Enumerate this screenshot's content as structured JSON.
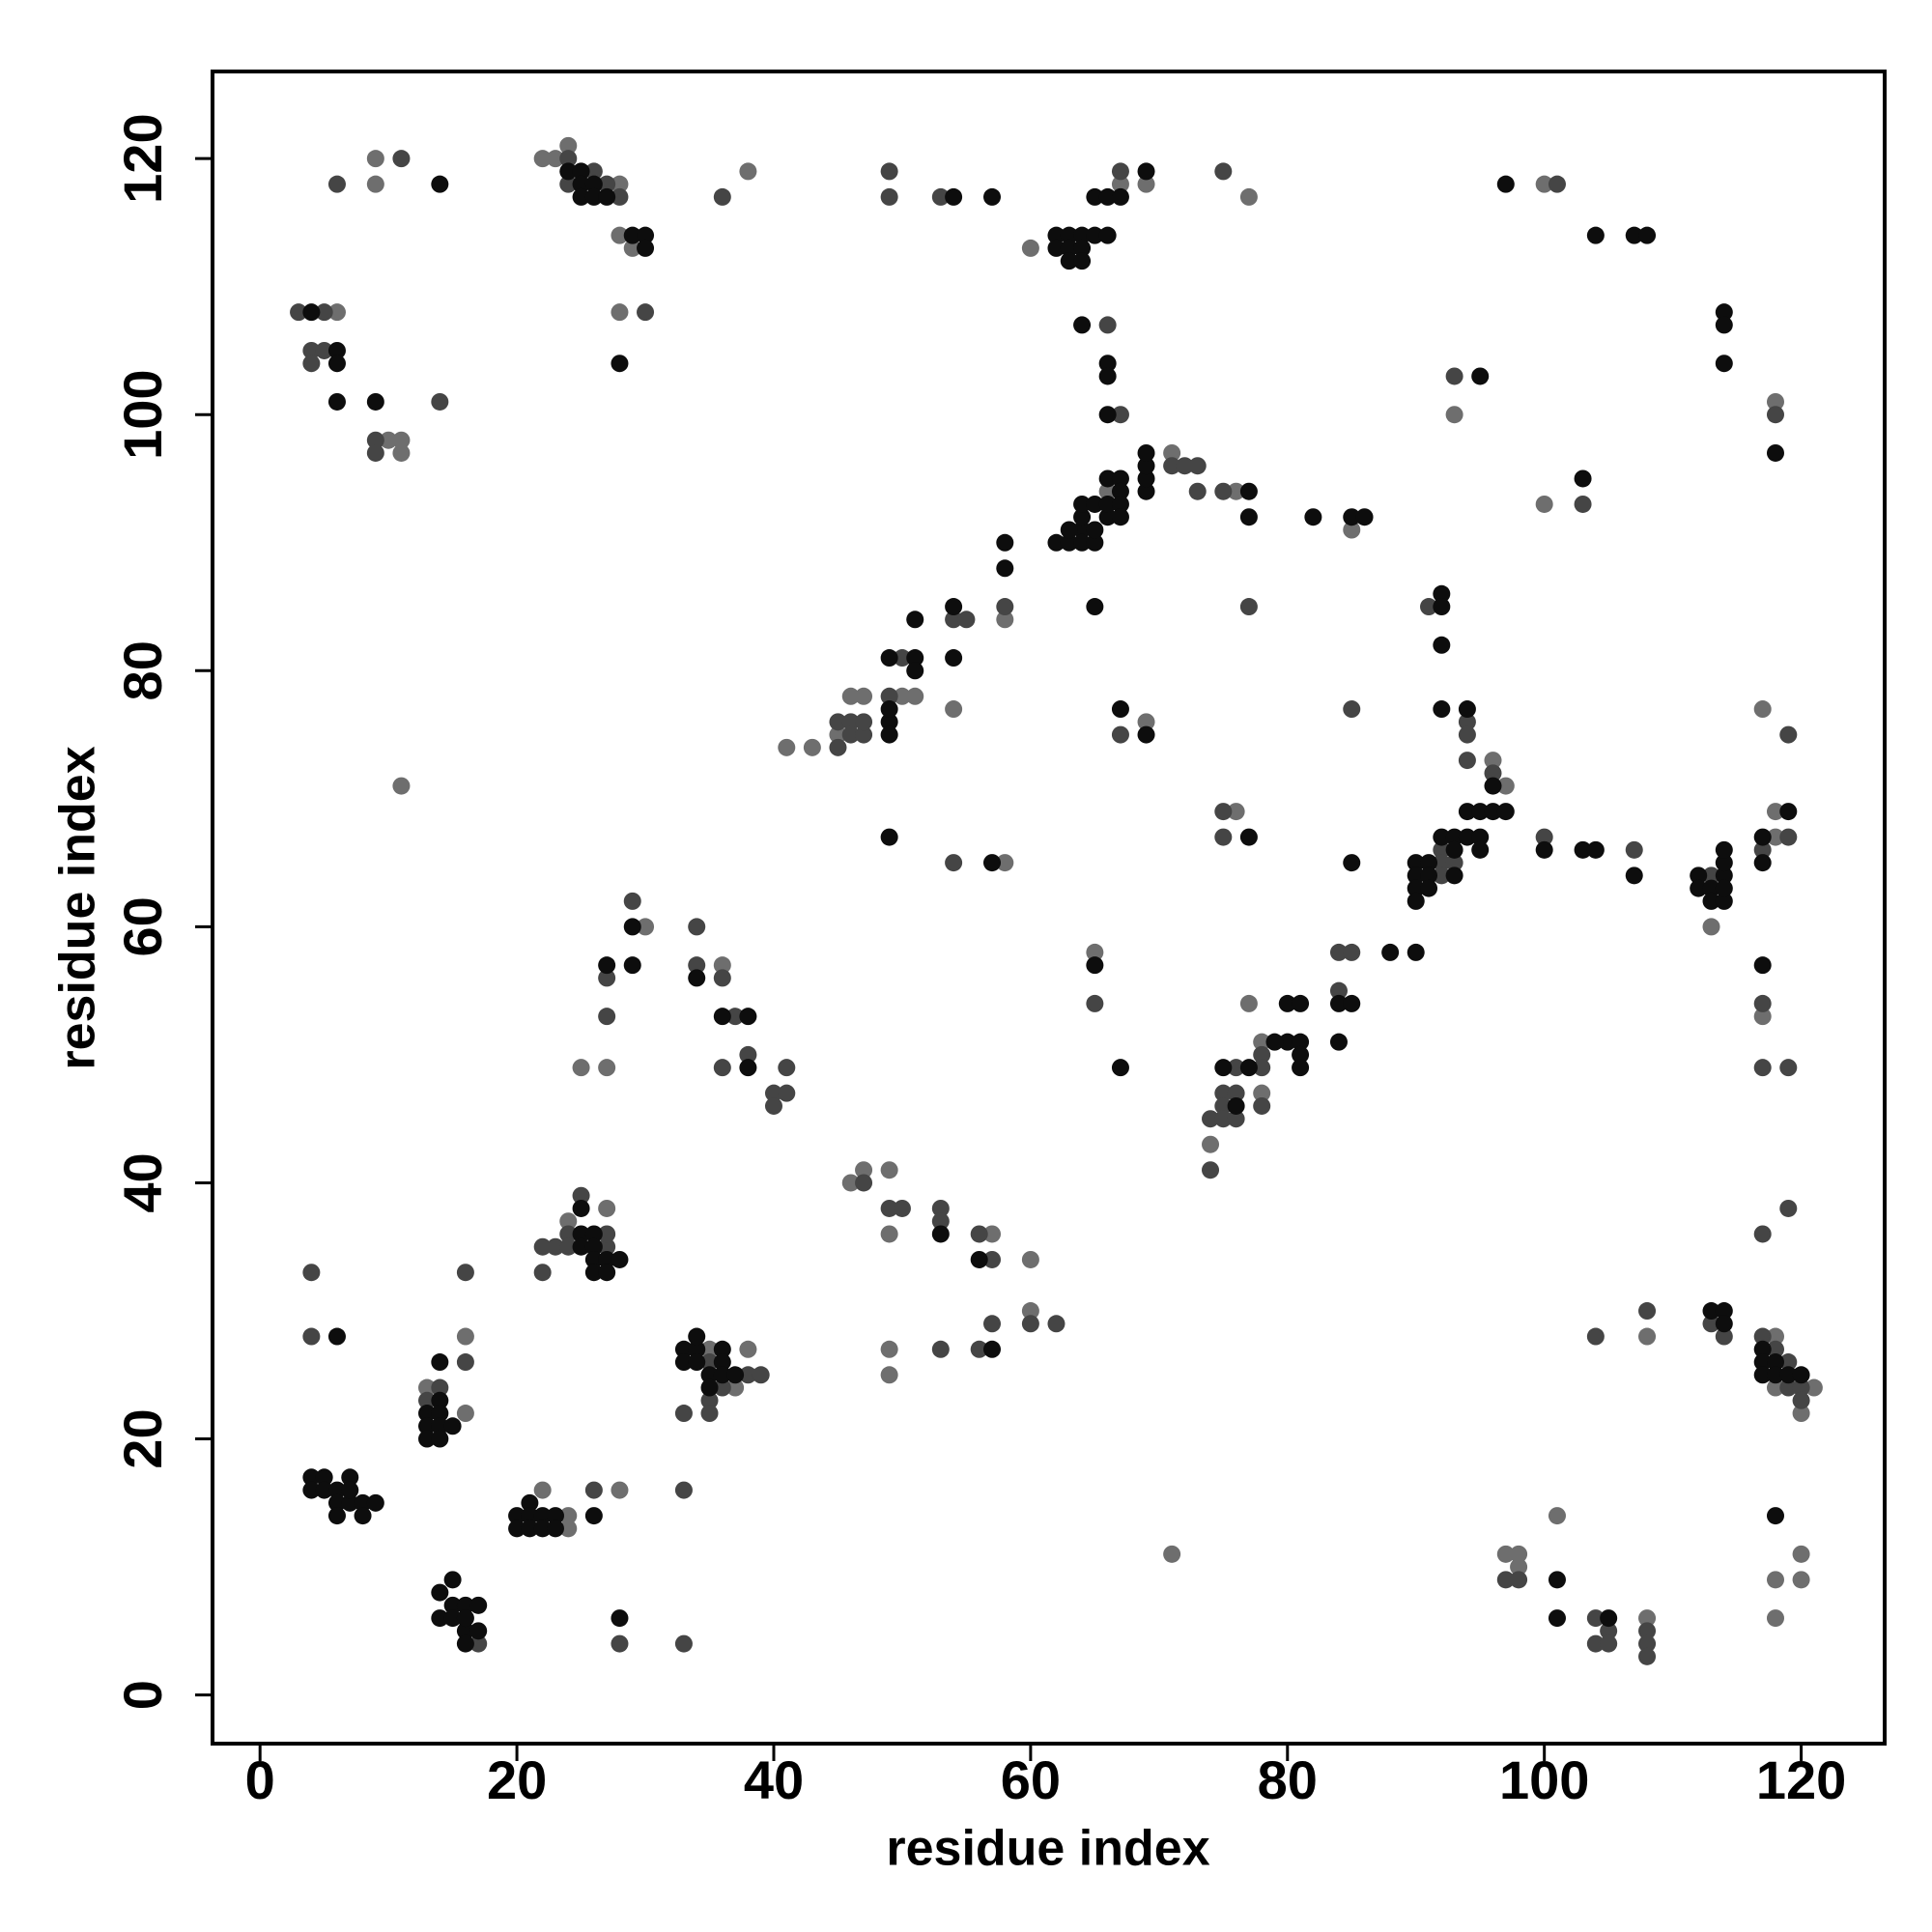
{
  "chart_data": {
    "type": "scatter",
    "xlabel": "residue index",
    "ylabel": "residue index",
    "xlim": [
      -3.7,
      126.5
    ],
    "ylim": [
      -3.8,
      126.8
    ],
    "xticks": [
      0,
      20,
      40,
      60,
      80,
      100,
      120
    ],
    "yticks": [
      0,
      20,
      40,
      60,
      80,
      100,
      120
    ],
    "series": [
      {
        "color": "#6e6e6e",
        "x": [
          16,
          16,
          13,
          24,
          24,
          22,
          28,
          24,
          27,
          35,
          37,
          38,
          47,
          46,
          49,
          49,
          57,
          60,
          60,
          49,
          49,
          25,
          27,
          30,
          36,
          41,
          43,
          45,
          46,
          47,
          50,
          51,
          54,
          58,
          66,
          71,
          76,
          69,
          65,
          58,
          9,
          9,
          22,
          23,
          24,
          28,
          28,
          29,
          28,
          38,
          60,
          67,
          69,
          77,
          6,
          10,
          11,
          11,
          11,
          100,
          93,
          118,
          100,
          85,
          96,
          97,
          118,
          118,
          117,
          76,
          113,
          117,
          78,
          78,
          77,
          74,
          108,
          118,
          118,
          121,
          120,
          118,
          120,
          120,
          118,
          97,
          98,
          98,
          101,
          108,
          71
        ],
        "values": [
          28,
          22,
          24,
          14,
          13,
          16,
          16,
          37,
          38,
          27,
          24,
          27,
          41,
          40,
          41,
          36,
          36,
          34,
          30,
          27,
          25,
          49,
          49,
          60,
          57,
          74,
          74,
          75,
          78,
          78,
          78,
          78,
          77,
          84,
          94,
          97,
          94,
          76,
          58,
          65,
          120,
          118,
          120,
          120,
          121,
          118,
          114,
          113,
          108,
          119,
          113,
          118,
          118,
          117,
          108,
          98,
          98,
          97,
          71,
          118,
          100,
          101,
          93,
          91,
          73,
          71,
          67,
          69,
          77,
          69,
          60,
          53,
          51,
          47,
          54,
          43,
          28,
          28,
          24,
          24,
          22,
          9,
          11,
          9,
          6,
          11,
          11,
          10,
          14,
          6,
          11
        ]
      },
      {
        "color": "#454545",
        "x": [
          4,
          4,
          14,
          13,
          16,
          16,
          17,
          26,
          28,
          33,
          33,
          22,
          23,
          22,
          25,
          24,
          24,
          27,
          27,
          35,
          38,
          39,
          36,
          35,
          35,
          33,
          47,
          49,
          50,
          53,
          53,
          56,
          57,
          57,
          60,
          62,
          53,
          56,
          27,
          27,
          29,
          34,
          34,
          36,
          37,
          36,
          38,
          40,
          41,
          41,
          40,
          45,
          45,
          46,
          46,
          47,
          47,
          49,
          50,
          54,
          55,
          58,
          71,
          72,
          73,
          73,
          75,
          67,
          65,
          54,
          6,
          11,
          24,
          24,
          26,
          27,
          28,
          30,
          36,
          49,
          49,
          53,
          67,
          75,
          3,
          5,
          4,
          5,
          4,
          14,
          9,
          9,
          66,
          67,
          101,
          93,
          118,
          103,
          77,
          85,
          91,
          94,
          94,
          94,
          96,
          92,
          92,
          93,
          92,
          100,
          107,
          113,
          119,
          117,
          119,
          75,
          75,
          117,
          117,
          119,
          84,
          85,
          84,
          78,
          76,
          78,
          75,
          76,
          75,
          74,
          75,
          76,
          78,
          74,
          117,
          119,
          104,
          108,
          113,
          114,
          117,
          118,
          119,
          119,
          120,
          120,
          97,
          98,
          104,
          105,
          104,
          105,
          108,
          108,
          108
        ],
        "values": [
          33,
          28,
          24,
          23,
          33,
          26,
          4,
          16,
          4,
          4,
          16,
          35,
          35,
          33,
          39,
          36,
          35,
          35,
          36,
          26,
          25,
          25,
          24,
          23,
          22,
          22,
          40,
          38,
          38,
          38,
          37,
          36,
          34,
          29,
          29,
          29,
          27,
          27,
          53,
          56,
          62,
          60,
          57,
          56,
          53,
          49,
          50,
          47,
          47,
          49,
          46,
          74,
          76,
          76,
          75,
          75,
          76,
          78,
          81,
          84,
          84,
          85,
          96,
          96,
          96,
          94,
          94,
          75,
          54,
          65,
          118,
          120,
          120,
          118,
          119,
          118,
          117,
          108,
          117,
          119,
          117,
          117,
          119,
          119,
          108,
          108,
          105,
          105,
          104,
          101,
          98,
          97,
          107,
          100,
          118,
          103,
          100,
          93,
          85,
          77,
          85,
          76,
          75,
          73,
          72,
          66,
          65,
          65,
          64,
          67,
          66,
          64,
          67,
          66,
          75,
          69,
          67,
          54,
          49,
          49,
          58,
          58,
          55,
          50,
          49,
          49,
          47,
          47,
          46,
          45,
          45,
          45,
          46,
          41,
          36,
          38,
          28,
          30,
          29,
          28,
          28,
          27,
          26,
          24,
          24,
          23,
          9,
          9,
          6,
          5,
          4,
          4,
          5,
          4,
          3
        ]
      },
      {
        "color": "#0d0d0d",
        "x": [
          6,
          4,
          5,
          4,
          5,
          6,
          7,
          6,
          7,
          8,
          9,
          6,
          8,
          7,
          14,
          14,
          13,
          14,
          13,
          14,
          15,
          13,
          14,
          14,
          15,
          14,
          15,
          16,
          17,
          15,
          16,
          17,
          16,
          16,
          20,
          21,
          21,
          22,
          23,
          20,
          21,
          22,
          23,
          26,
          28,
          25,
          25,
          26,
          25,
          26,
          26,
          27,
          28,
          26,
          27,
          33,
          34,
          34,
          36,
          33,
          34,
          36,
          35,
          36,
          37,
          35,
          53,
          56,
          57,
          27,
          29,
          29,
          34,
          36,
          38,
          38,
          49,
          49,
          49,
          49,
          51,
          51,
          51,
          54,
          54,
          58,
          58,
          62,
          63,
          64,
          64,
          65,
          63,
          64,
          65,
          64,
          65,
          66,
          66,
          66,
          67,
          67,
          67,
          67,
          69,
          69,
          69,
          69,
          77,
          77,
          65,
          67,
          69,
          67,
          65,
          57,
          49,
          14,
          24,
          25,
          25,
          26,
          25,
          26,
          27,
          29,
          30,
          30,
          28,
          54,
          57,
          62,
          62,
          63,
          63,
          64,
          64,
          63,
          64,
          65,
          66,
          65,
          66,
          67,
          69,
          4,
          6,
          6,
          6,
          9,
          64,
          66,
          66,
          66,
          97,
          104,
          107,
          108,
          114,
          114,
          114,
          95,
          118,
          103,
          82,
          85,
          86,
          92,
          92,
          92,
          92,
          94,
          96,
          94,
          95,
          96,
          97,
          92,
          93,
          94,
          95,
          93,
          95,
          90,
          91,
          90,
          91,
          93,
          90,
          91,
          90,
          88,
          90,
          100,
          103,
          104,
          107,
          112,
          112,
          113,
          114,
          113,
          114,
          114,
          114,
          114,
          117,
          117,
          119,
          77,
          117,
          85,
          84,
          85,
          84,
          80,
          81,
          80,
          81,
          79,
          81,
          81,
          77,
          75,
          76,
          113,
          114,
          114,
          117,
          117,
          118,
          117,
          118,
          119,
          120,
          118,
          101,
          101,
          105
        ],
        "values": [
          28,
          17,
          17,
          16,
          16,
          16,
          17,
          15,
          15,
          15,
          15,
          14,
          14,
          16,
          26,
          23,
          22,
          22,
          21,
          21,
          21,
          20,
          20,
          8,
          9,
          6,
          7,
          7,
          7,
          6,
          5,
          5,
          4,
          6,
          14,
          15,
          14,
          14,
          14,
          13,
          13,
          13,
          13,
          14,
          6,
          38,
          36,
          36,
          35,
          35,
          34,
          34,
          34,
          33,
          33,
          27,
          27,
          28,
          27,
          26,
          26,
          26,
          25,
          25,
          25,
          24,
          36,
          34,
          27,
          57,
          57,
          60,
          56,
          53,
          53,
          49,
          76,
          77,
          75,
          81,
          81,
          80,
          84,
          85,
          81,
          90,
          88,
          90,
          90,
          91,
          90,
          90,
          91,
          92,
          91,
          93,
          93,
          92,
          93,
          95,
          95,
          94,
          93,
          92,
          94,
          95,
          96,
          97,
          94,
          92,
          85,
          77,
          75,
          49,
          57,
          65,
          67,
          118,
          119,
          119,
          118,
          118,
          117,
          117,
          117,
          114,
          114,
          113,
          104,
          117,
          117,
          114,
          113,
          114,
          113,
          114,
          113,
          112,
          112,
          114,
          114,
          117,
          117,
          117,
          119,
          108,
          105,
          104,
          101,
          101,
          107,
          104,
          103,
          100,
          118,
          114,
          114,
          114,
          108,
          107,
          104,
          103,
          97,
          95,
          92,
          92,
          92,
          86,
          85,
          82,
          77,
          77,
          71,
          69,
          69,
          69,
          69,
          67,
          67,
          67,
          67,
          66,
          66,
          65,
          65,
          64,
          64,
          64,
          63,
          63,
          62,
          58,
          58,
          66,
          66,
          66,
          64,
          64,
          63,
          63,
          64,
          62,
          62,
          63,
          65,
          66,
          67,
          65,
          69,
          67,
          57,
          65,
          54,
          54,
          51,
          54,
          54,
          51,
          51,
          51,
          50,
          49,
          49,
          49,
          46,
          30,
          30,
          29,
          27,
          26,
          26,
          25,
          25,
          25,
          25,
          14,
          9,
          6,
          6
        ]
      }
    ]
  }
}
